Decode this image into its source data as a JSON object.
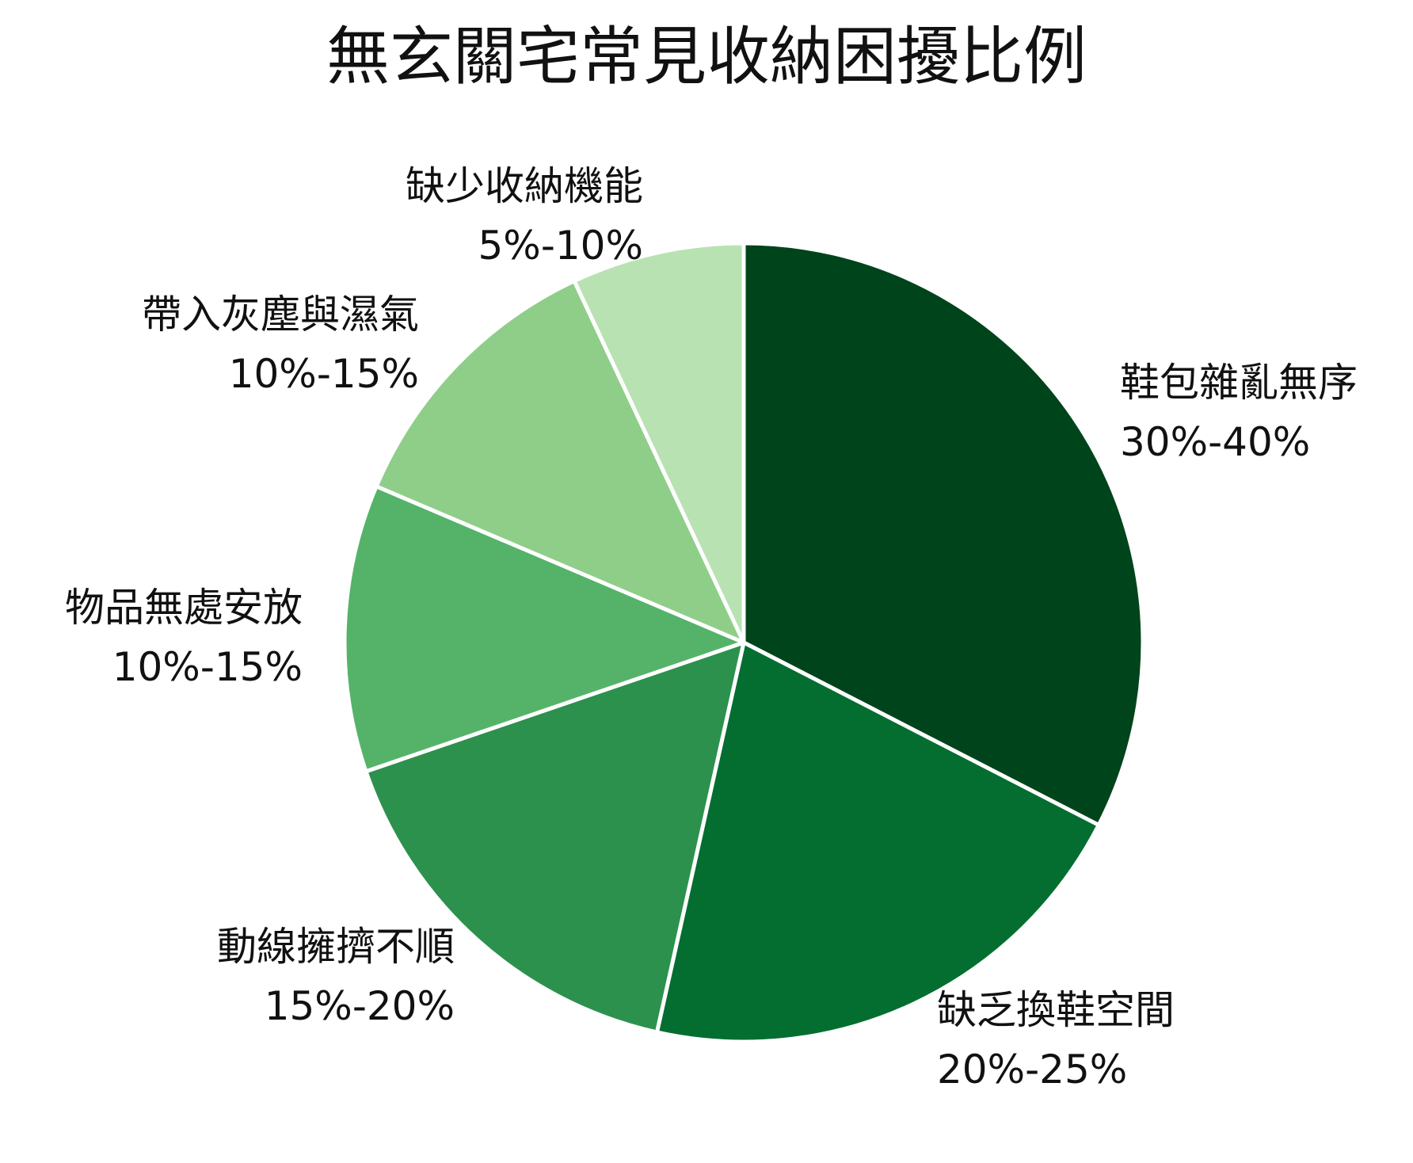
{
  "chart_data": {
    "type": "pie",
    "title": "無玄關宅常見收納困擾比例",
    "start_angle_deg": 0,
    "direction": "clockwise",
    "slice_border_color": "#ffffff",
    "legend": "none",
    "slices": [
      {
        "label": "鞋包雜亂無序",
        "range_text": "30%-40%",
        "value": 35,
        "color": "#00441b"
      },
      {
        "label": "缺乏換鞋空間",
        "range_text": "20%-25%",
        "value": 22.5,
        "color": "#036e30"
      },
      {
        "label": "動線擁擠不順",
        "range_text": "15%-20%",
        "value": 17.5,
        "color": "#2c914d"
      },
      {
        "label": "物品無處安放",
        "range_text": "10%-15%",
        "value": 12.5,
        "color": "#55b369"
      },
      {
        "label": "帶入灰塵與濕氣",
        "range_text": "10%-15%",
        "value": 12.5,
        "color": "#8fce89"
      },
      {
        "label": "缺少收納機能",
        "range_text": "5%-10%",
        "value": 7.5,
        "color": "#b9e2b2"
      }
    ]
  }
}
